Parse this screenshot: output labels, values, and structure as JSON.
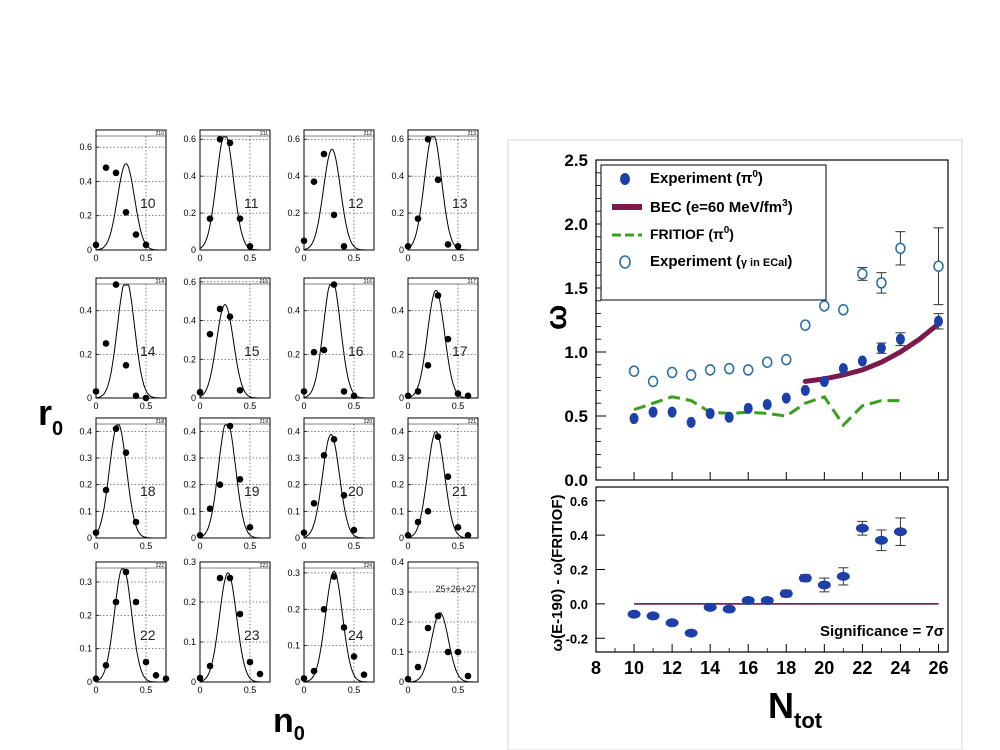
{
  "colors": {
    "experiment_pi0": "#1c3fa8",
    "bec": "#7b1a4a",
    "fritiof": "#3a9e1e",
    "experiment_gamma": "#2a6fa8",
    "reference_line": "#6a2a5a",
    "axis": "#000000"
  },
  "left_panel": {
    "ylabel_main": "r",
    "ylabel_sub": "0",
    "xlabel_main": "n",
    "xlabel_sub": "0"
  },
  "right_top": {
    "ylabel": "ω",
    "yticks": [
      "0.0",
      "0.5",
      "1.0",
      "1.5",
      "2.0",
      "2.5"
    ],
    "legend": [
      {
        "label": "Experiment (π",
        "sup": "0",
        "tail": ")"
      },
      {
        "label": "BEC (e=60 MeV/fm",
        "sup": "3",
        "tail": ")"
      },
      {
        "label": "FRITIOF (π",
        "sup": "0",
        "tail": ")"
      },
      {
        "label": "Experiment (",
        "mid": "γ in ECal",
        "tail": ")"
      }
    ]
  },
  "right_bottom": {
    "ylabel": "ω(E-190) - ω(FRITIOF)",
    "yticks": [
      "-0.2",
      "0.0",
      "0.2",
      "0.4",
      "0.6"
    ],
    "annotation": "Significance = 7σ"
  },
  "shared_x": {
    "xlabel_main": "N",
    "xlabel_sub": "tot",
    "xticks": [
      "8",
      "10",
      "12",
      "14",
      "16",
      "18",
      "20",
      "22",
      "24",
      "26"
    ]
  },
  "chart_data": [
    {
      "type": "scatter",
      "panel": "grid of 16 small plots",
      "x_axis_label": "n0",
      "y_axis_label": "r0",
      "panels": [
        {
          "label": "10",
          "ylim": [
            0,
            0.7
          ],
          "yticks": [
            "0",
            "0.2",
            "0.4",
            "0.6"
          ],
          "header_number": "210",
          "points_x": [
            0.0,
            0.1,
            0.2,
            0.3,
            0.4,
            0.5
          ],
          "points_y": [
            0.03,
            0.48,
            0.45,
            0.22,
            0.09,
            0.03
          ],
          "peak": 0.3
        },
        {
          "label": "11",
          "ylim": [
            0,
            0.65
          ],
          "yticks": [
            "0",
            "0.2",
            "0.4",
            "0.6"
          ],
          "header_number": "211",
          "points_x": [
            0.1,
            0.2,
            0.3,
            0.4,
            0.5
          ],
          "points_y": [
            0.17,
            0.6,
            0.58,
            0.17,
            0.02
          ],
          "peak": 0.25
        },
        {
          "label": "12",
          "ylim": [
            0,
            0.65
          ],
          "yticks": [
            "0",
            "0.2",
            "0.4",
            "0.6"
          ],
          "header_number": "212",
          "points_x": [
            0.0,
            0.1,
            0.2,
            0.3,
            0.4
          ],
          "points_y": [
            0.05,
            0.37,
            0.52,
            0.19,
            0.02
          ],
          "peak": 0.28
        },
        {
          "label": "13",
          "ylim": [
            0,
            0.65
          ],
          "yticks": [
            "0",
            "0.2",
            "0.4",
            "0.6"
          ],
          "header_number": "213",
          "points_x": [
            0.0,
            0.1,
            0.2,
            0.3,
            0.4,
            0.5
          ],
          "points_y": [
            0.02,
            0.17,
            0.6,
            0.38,
            0.03,
            0.02
          ],
          "peak": 0.25
        },
        {
          "label": "14",
          "ylim": [
            0,
            0.55
          ],
          "yticks": [
            "0",
            "0.2",
            "0.4"
          ],
          "header_number": "214",
          "points_x": [
            0.0,
            0.1,
            0.2,
            0.3,
            0.4,
            0.5
          ],
          "points_y": [
            0.03,
            0.25,
            0.52,
            0.15,
            0.01,
            0.0
          ],
          "peak": 0.3
        },
        {
          "label": "15",
          "ylim": [
            0,
            0.62
          ],
          "yticks": [
            "0",
            "0.2",
            "0.4",
            "0.6"
          ],
          "header_number": "215",
          "points_x": [
            0.0,
            0.1,
            0.2,
            0.3,
            0.4
          ],
          "points_y": [
            0.03,
            0.33,
            0.46,
            0.42,
            0.04
          ],
          "peak": 0.25
        },
        {
          "label": "16",
          "ylim": [
            0,
            0.55
          ],
          "yticks": [
            "0",
            "0.2",
            "0.4"
          ],
          "header_number": "216",
          "points_x": [
            0.0,
            0.1,
            0.2,
            0.3,
            0.4,
            0.5
          ],
          "points_y": [
            0.03,
            0.21,
            0.22,
            0.52,
            0.03,
            0.01
          ],
          "peak": 0.28
        },
        {
          "label": "17",
          "ylim": [
            0,
            0.55
          ],
          "yticks": [
            "0",
            "0.2",
            "0.4"
          ],
          "header_number": "217",
          "points_x": [
            0.0,
            0.1,
            0.2,
            0.3,
            0.4,
            0.5,
            0.6
          ],
          "points_y": [
            0.01,
            0.03,
            0.15,
            0.47,
            0.27,
            0.02,
            0.01
          ],
          "peak": 0.28
        },
        {
          "label": "18",
          "ylim": [
            0,
            0.45
          ],
          "yticks": [
            "0",
            "0.1",
            "0.2",
            "0.3",
            "0.4"
          ],
          "header_number": "218",
          "points_x": [
            0.0,
            0.1,
            0.2,
            0.3,
            0.4
          ],
          "points_y": [
            0.02,
            0.18,
            0.41,
            0.32,
            0.06
          ],
          "peak": 0.22
        },
        {
          "label": "19",
          "ylim": [
            0,
            0.45
          ],
          "yticks": [
            "0",
            "0.1",
            "0.2",
            "0.3",
            "0.4"
          ],
          "header_number": "219",
          "points_x": [
            0.0,
            0.1,
            0.2,
            0.3,
            0.4,
            0.5
          ],
          "points_y": [
            0.01,
            0.11,
            0.2,
            0.42,
            0.22,
            0.04
          ],
          "peak": 0.27
        },
        {
          "label": "20",
          "ylim": [
            0,
            0.45
          ],
          "yticks": [
            "0",
            "0.1",
            "0.2",
            "0.3",
            "0.4"
          ],
          "header_number": "220",
          "points_x": [
            0.0,
            0.1,
            0.2,
            0.3,
            0.4,
            0.5
          ],
          "points_y": [
            0.02,
            0.13,
            0.31,
            0.37,
            0.16,
            0.03
          ],
          "peak": 0.27
        },
        {
          "label": "21",
          "ylim": [
            0,
            0.45
          ],
          "yticks": [
            "0",
            "0.1",
            "0.2",
            "0.3",
            "0.4"
          ],
          "header_number": "221",
          "points_x": [
            0.0,
            0.1,
            0.2,
            0.3,
            0.4,
            0.5,
            0.6
          ],
          "points_y": [
            0.01,
            0.06,
            0.1,
            0.38,
            0.23,
            0.04,
            0.01
          ],
          "peak": 0.28
        },
        {
          "label": "22",
          "ylim": [
            0,
            0.36
          ],
          "yticks": [
            "0",
            "0.1",
            "0.2",
            "0.3"
          ],
          "header_number": "222",
          "points_x": [
            0.0,
            0.1,
            0.2,
            0.3,
            0.4,
            0.5,
            0.6,
            0.7
          ],
          "points_y": [
            0.01,
            0.05,
            0.24,
            0.33,
            0.24,
            0.06,
            0.02,
            0.01
          ],
          "peak": 0.27
        },
        {
          "label": "23",
          "ylim": [
            0,
            0.3
          ],
          "yticks": [
            "0",
            "0.1",
            "0.2",
            "0.3"
          ],
          "header_number": "223",
          "points_x": [
            0.0,
            0.1,
            0.2,
            0.3,
            0.4,
            0.5,
            0.6
          ],
          "points_y": [
            0.01,
            0.04,
            0.26,
            0.26,
            0.17,
            0.05,
            0.02
          ],
          "peak": 0.28
        },
        {
          "label": "24",
          "ylim": [
            0,
            0.33
          ],
          "yticks": [
            "0",
            "0.1",
            "0.2",
            "0.3"
          ],
          "header_number": "224",
          "points_x": [
            0.0,
            0.1,
            0.2,
            0.3,
            0.4,
            0.5,
            0.6
          ],
          "points_y": [
            0.01,
            0.03,
            0.2,
            0.29,
            0.15,
            0.07,
            0.02
          ],
          "peak": 0.3
        },
        {
          "label": "25+26+27",
          "ylim": [
            0,
            0.4
          ],
          "yticks": [
            "0",
            "0.1",
            "0.2",
            "0.3",
            "0.4"
          ],
          "header_number": "",
          "points_x": [
            0.0,
            0.1,
            0.2,
            0.3,
            0.4,
            0.5,
            0.6
          ],
          "points_y": [
            0.01,
            0.05,
            0.18,
            0.22,
            0.1,
            0.1,
            0.02
          ],
          "peak": 0.32
        }
      ],
      "xlim": [
        0,
        0.7
      ],
      "xticks": [
        "0",
        "0.5"
      ]
    },
    {
      "type": "scatter",
      "panel": "upper right",
      "ylabel": "ω",
      "xlabel": "Ntot",
      "xlim": [
        8,
        26.5
      ],
      "ylim": [
        0,
        2.5
      ],
      "series": [
        {
          "name": "Experiment (π0)",
          "marker": "filled-ellipse",
          "x": [
            10,
            11,
            12,
            13,
            14,
            15,
            16,
            17,
            18,
            19,
            20,
            21,
            22,
            23,
            24,
            26
          ],
          "y": [
            0.48,
            0.53,
            0.53,
            0.45,
            0.52,
            0.49,
            0.56,
            0.59,
            0.64,
            0.7,
            0.77,
            0.87,
            0.93,
            1.03,
            1.1,
            1.24
          ],
          "err": [
            0.03,
            0.03,
            0.03,
            0.03,
            0.03,
            0.03,
            0.03,
            0.03,
            0.03,
            0.03,
            0.03,
            0.03,
            0.03,
            0.04,
            0.05,
            0.06
          ]
        },
        {
          "name": "BEC (e=60 MeV/fm3)",
          "style": "thick-line",
          "x": [
            19,
            20,
            21,
            22,
            23,
            24,
            25,
            26
          ],
          "y": [
            0.77,
            0.79,
            0.82,
            0.86,
            0.92,
            1.0,
            1.1,
            1.22
          ]
        },
        {
          "name": "FRITIOF (π0)",
          "style": "dashed-line",
          "x": [
            10,
            11,
            12,
            13,
            14,
            15,
            16,
            17,
            18,
            19,
            20,
            21,
            22,
            23,
            24
          ],
          "y": [
            0.55,
            0.6,
            0.65,
            0.62,
            0.53,
            0.52,
            0.53,
            0.52,
            0.5,
            0.6,
            0.65,
            0.43,
            0.58,
            0.62,
            0.62
          ]
        },
        {
          "name": "Experiment (γ in ECal)",
          "marker": "open-circle",
          "x": [
            10,
            11,
            12,
            13,
            14,
            15,
            16,
            17,
            18,
            19,
            20,
            21,
            22,
            23,
            24,
            26
          ],
          "y": [
            0.85,
            0.77,
            0.84,
            0.82,
            0.86,
            0.87,
            0.86,
            0.92,
            0.94,
            1.21,
            1.36,
            1.33,
            1.61,
            1.54,
            1.81,
            1.67
          ],
          "err": [
            0.02,
            0.02,
            0.02,
            0.02,
            0.02,
            0.02,
            0.02,
            0.03,
            0.03,
            0.03,
            0.03,
            0.04,
            0.05,
            0.08,
            0.13,
            0.3
          ]
        }
      ]
    },
    {
      "type": "scatter",
      "panel": "lower right",
      "ylabel": "ω(E-190) - ω(FRITIOF)",
      "xlabel": "Ntot",
      "xlim": [
        8,
        26.5
      ],
      "ylim": [
        -0.28,
        0.68
      ],
      "reference_line_y": 0.0,
      "series": [
        {
          "name": "",
          "marker": "filled-ellipse",
          "x": [
            10,
            11,
            12,
            13,
            14,
            15,
            16,
            17,
            18,
            19,
            20,
            21,
            22,
            23,
            24
          ],
          "y": [
            -0.06,
            -0.07,
            -0.11,
            -0.17,
            -0.02,
            -0.03,
            0.02,
            0.02,
            0.06,
            0.15,
            0.11,
            0.16,
            0.44,
            0.37,
            0.42
          ],
          "err": [
            0.01,
            0.01,
            0.01,
            0.01,
            0.01,
            0.01,
            0.01,
            0.01,
            0.02,
            0.02,
            0.04,
            0.05,
            0.04,
            0.06,
            0.08
          ]
        }
      ]
    }
  ]
}
